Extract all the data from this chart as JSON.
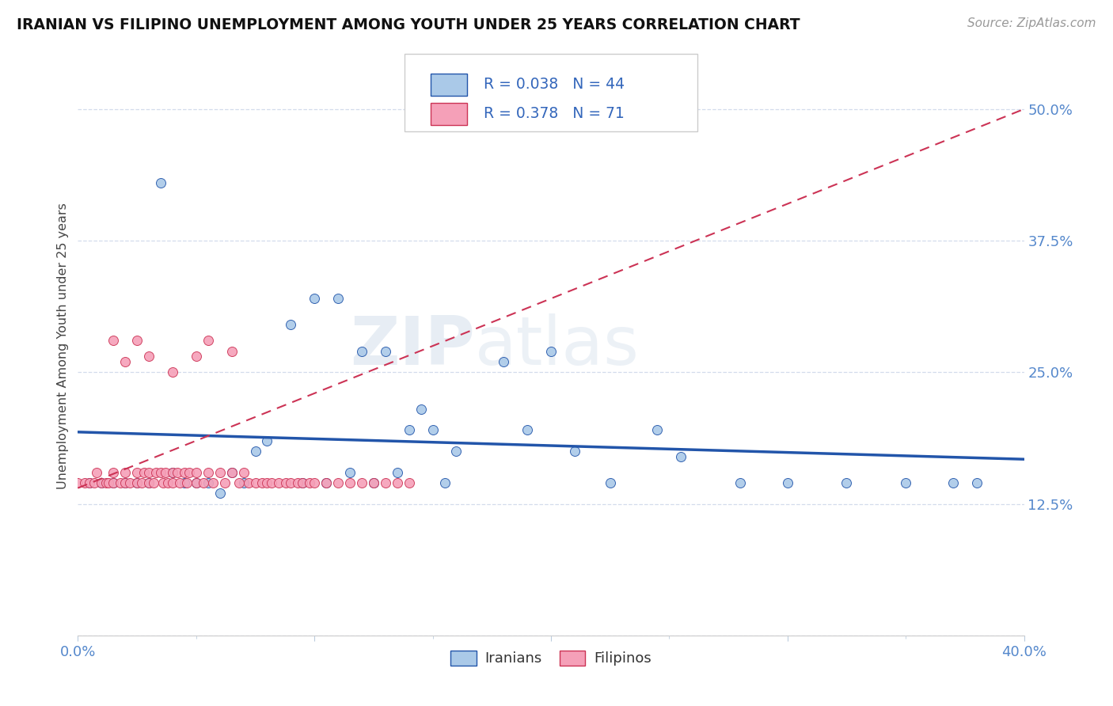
{
  "title": "IRANIAN VS FILIPINO UNEMPLOYMENT AMONG YOUTH UNDER 25 YEARS CORRELATION CHART",
  "source": "Source: ZipAtlas.com",
  "ylabel": "Unemployment Among Youth under 25 years",
  "xlim": [
    0.0,
    0.4
  ],
  "ylim": [
    0.0,
    0.55
  ],
  "R_iranians": 0.038,
  "N_iranians": 44,
  "R_filipinos": 0.378,
  "N_filipinos": 71,
  "color_iranians": "#aac9e8",
  "color_filipinos": "#f5a0b8",
  "line_color_iranians": "#2255aa",
  "line_color_filipinos": "#cc3355",
  "iranians_x": [
    0.005,
    0.01,
    0.015,
    0.02,
    0.02,
    0.025,
    0.03,
    0.04,
    0.04,
    0.05,
    0.055,
    0.06,
    0.065,
    0.07,
    0.08,
    0.09,
    0.095,
    0.1,
    0.105,
    0.11,
    0.115,
    0.12,
    0.125,
    0.13,
    0.135,
    0.14,
    0.15,
    0.155,
    0.16,
    0.175,
    0.19,
    0.2,
    0.2,
    0.21,
    0.225,
    0.245,
    0.255,
    0.27,
    0.295,
    0.315,
    0.335,
    0.36,
    0.375,
    0.375
  ],
  "iranians_y": [
    0.145,
    0.145,
    0.145,
    0.145,
    0.155,
    0.145,
    0.145,
    0.155,
    0.43,
    0.145,
    0.145,
    0.135,
    0.155,
    0.145,
    0.175,
    0.19,
    0.295,
    0.145,
    0.32,
    0.145,
    0.32,
    0.155,
    0.27,
    0.145,
    0.27,
    0.155,
    0.195,
    0.215,
    0.155,
    0.26,
    0.195,
    0.27,
    0.155,
    0.175,
    0.145,
    0.195,
    0.17,
    0.155,
    0.145,
    0.145,
    0.145,
    0.145,
    0.145,
    0.14
  ],
  "filipinos_x": [
    0.0,
    0.003,
    0.005,
    0.007,
    0.008,
    0.01,
    0.01,
    0.012,
    0.013,
    0.015,
    0.015,
    0.018,
    0.02,
    0.02,
    0.022,
    0.023,
    0.025,
    0.025,
    0.027,
    0.028,
    0.03,
    0.03,
    0.032,
    0.033,
    0.034,
    0.035,
    0.036,
    0.037,
    0.038,
    0.04,
    0.04,
    0.042,
    0.043,
    0.045,
    0.046,
    0.047,
    0.05,
    0.05,
    0.053,
    0.055,
    0.057,
    0.06,
    0.062,
    0.063,
    0.065,
    0.068,
    0.07,
    0.072,
    0.075,
    0.078,
    0.08,
    0.082,
    0.085,
    0.088,
    0.09,
    0.093,
    0.095,
    0.098,
    0.1,
    0.105,
    0.11,
    0.115,
    0.12,
    0.125,
    0.13,
    0.135,
    0.14,
    0.015,
    0.02,
    0.03,
    0.055
  ],
  "filipinos_y": [
    0.145,
    0.145,
    0.145,
    0.145,
    0.155,
    0.145,
    0.155,
    0.145,
    0.145,
    0.145,
    0.155,
    0.145,
    0.155,
    0.145,
    0.145,
    0.28,
    0.155,
    0.145,
    0.145,
    0.155,
    0.145,
    0.155,
    0.145,
    0.155,
    0.145,
    0.155,
    0.145,
    0.155,
    0.145,
    0.155,
    0.145,
    0.155,
    0.145,
    0.155,
    0.145,
    0.155,
    0.145,
    0.155,
    0.145,
    0.155,
    0.145,
    0.155,
    0.145,
    0.155,
    0.145,
    0.155,
    0.145,
    0.155,
    0.145,
    0.155,
    0.145,
    0.155,
    0.145,
    0.155,
    0.145,
    0.145,
    0.155,
    0.145,
    0.145,
    0.145,
    0.145,
    0.145,
    0.145,
    0.145,
    0.145,
    0.145,
    0.145,
    0.28,
    0.26,
    0.26,
    0.28
  ]
}
